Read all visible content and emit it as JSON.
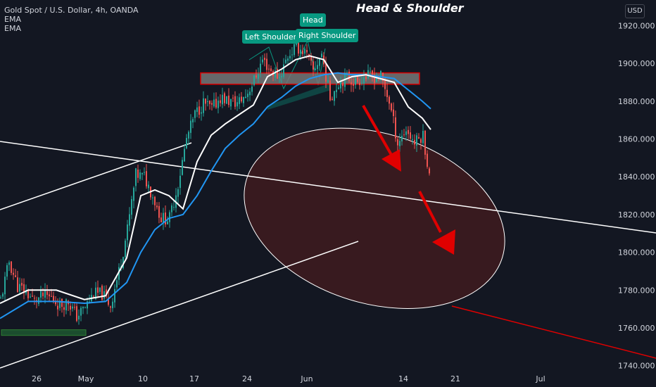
{
  "legend": {
    "symbol": "Gold Spot / U.S. Dollar, 4h, OANDA",
    "ema1": "EMA",
    "ema2": "EMA"
  },
  "currency": "USD",
  "annotations": {
    "title": "Head & Shoulder",
    "head": "Head",
    "left_shoulder": "Left Shoulder",
    "right_shoulder": "Right Shoulder"
  },
  "colors": {
    "background": "#131722",
    "up": "#26a69a",
    "down": "#ef5350",
    "ema_fast": "#ffffff",
    "ema_slow": "#2196f3",
    "arrow": "#e00000",
    "zone_fill": "#3a1a20",
    "pattern": "#089981"
  },
  "chart_data": {
    "type": "candlestick",
    "x_ticks": [
      "26",
      "May",
      "10",
      "17",
      "24",
      "Jun",
      "14",
      "21",
      "Jul"
    ],
    "y_ticks": [
      1740,
      1760,
      1780,
      1800,
      1820,
      1840,
      1860,
      1880,
      1900,
      1920
    ],
    "ylim": [
      1738,
      1928
    ],
    "trend": {
      "x": [
        0,
        12,
        24,
        36,
        48,
        60,
        72,
        84,
        96,
        108,
        120,
        132,
        144,
        156,
        168,
        180,
        192,
        204,
        216,
        228,
        240,
        252,
        264,
        276,
        288,
        300,
        312,
        324,
        336,
        348,
        360,
        372,
        384,
        396,
        408,
        420,
        432,
        444,
        456,
        468,
        480,
        492,
        504,
        516,
        528,
        540,
        552,
        564,
        576,
        588,
        600,
        610
      ],
      "y": [
        1775,
        1795,
        1782,
        1779,
        1774,
        1777,
        1776,
        1772,
        1774,
        1766,
        1771,
        1778,
        1778,
        1772,
        1790,
        1812,
        1841,
        1840,
        1830,
        1818,
        1818,
        1836,
        1860,
        1873,
        1879,
        1876,
        1882,
        1880,
        1879,
        1883,
        1891,
        1902,
        1896,
        1893,
        1904,
        1909,
        1906,
        1896,
        1905,
        1882,
        1890,
        1893,
        1890,
        1893,
        1893,
        1893,
        1880,
        1858,
        1865,
        1858,
        1862,
        1838
      ]
    },
    "ema_fast": {
      "x": [
        0,
        40,
        80,
        120,
        150,
        180,
        200,
        220,
        240,
        260,
        280,
        300,
        320,
        340,
        360,
        380,
        400,
        420,
        440,
        460,
        480,
        500,
        520,
        540,
        560,
        580,
        600,
        612
      ],
      "y": [
        1773,
        1780,
        1780,
        1775,
        1777,
        1797,
        1830,
        1833,
        1830,
        1823,
        1848,
        1862,
        1868,
        1873,
        1878,
        1893,
        1897,
        1902,
        1904,
        1902,
        1890,
        1893,
        1894,
        1892,
        1890,
        1877,
        1871,
        1865
      ]
    },
    "ema_slow": {
      "x": [
        0,
        40,
        80,
        120,
        150,
        180,
        200,
        220,
        240,
        260,
        280,
        300,
        320,
        340,
        360,
        380,
        400,
        420,
        440,
        460,
        480,
        500,
        520,
        540,
        560,
        580,
        600,
        612
      ],
      "y": [
        1765,
        1774,
        1774,
        1773,
        1774,
        1784,
        1800,
        1812,
        1818,
        1820,
        1830,
        1843,
        1855,
        1862,
        1868,
        1877,
        1882,
        1888,
        1892,
        1894,
        1895,
        1894,
        1894,
        1893,
        1892,
        1886,
        1880,
        1876
      ]
    },
    "overlays": {
      "resistance_zone": [
        1889,
        1895
      ],
      "support_zone": [
        1756,
        1759
      ],
      "target_zone_y": [
        1773,
        1863
      ]
    }
  }
}
